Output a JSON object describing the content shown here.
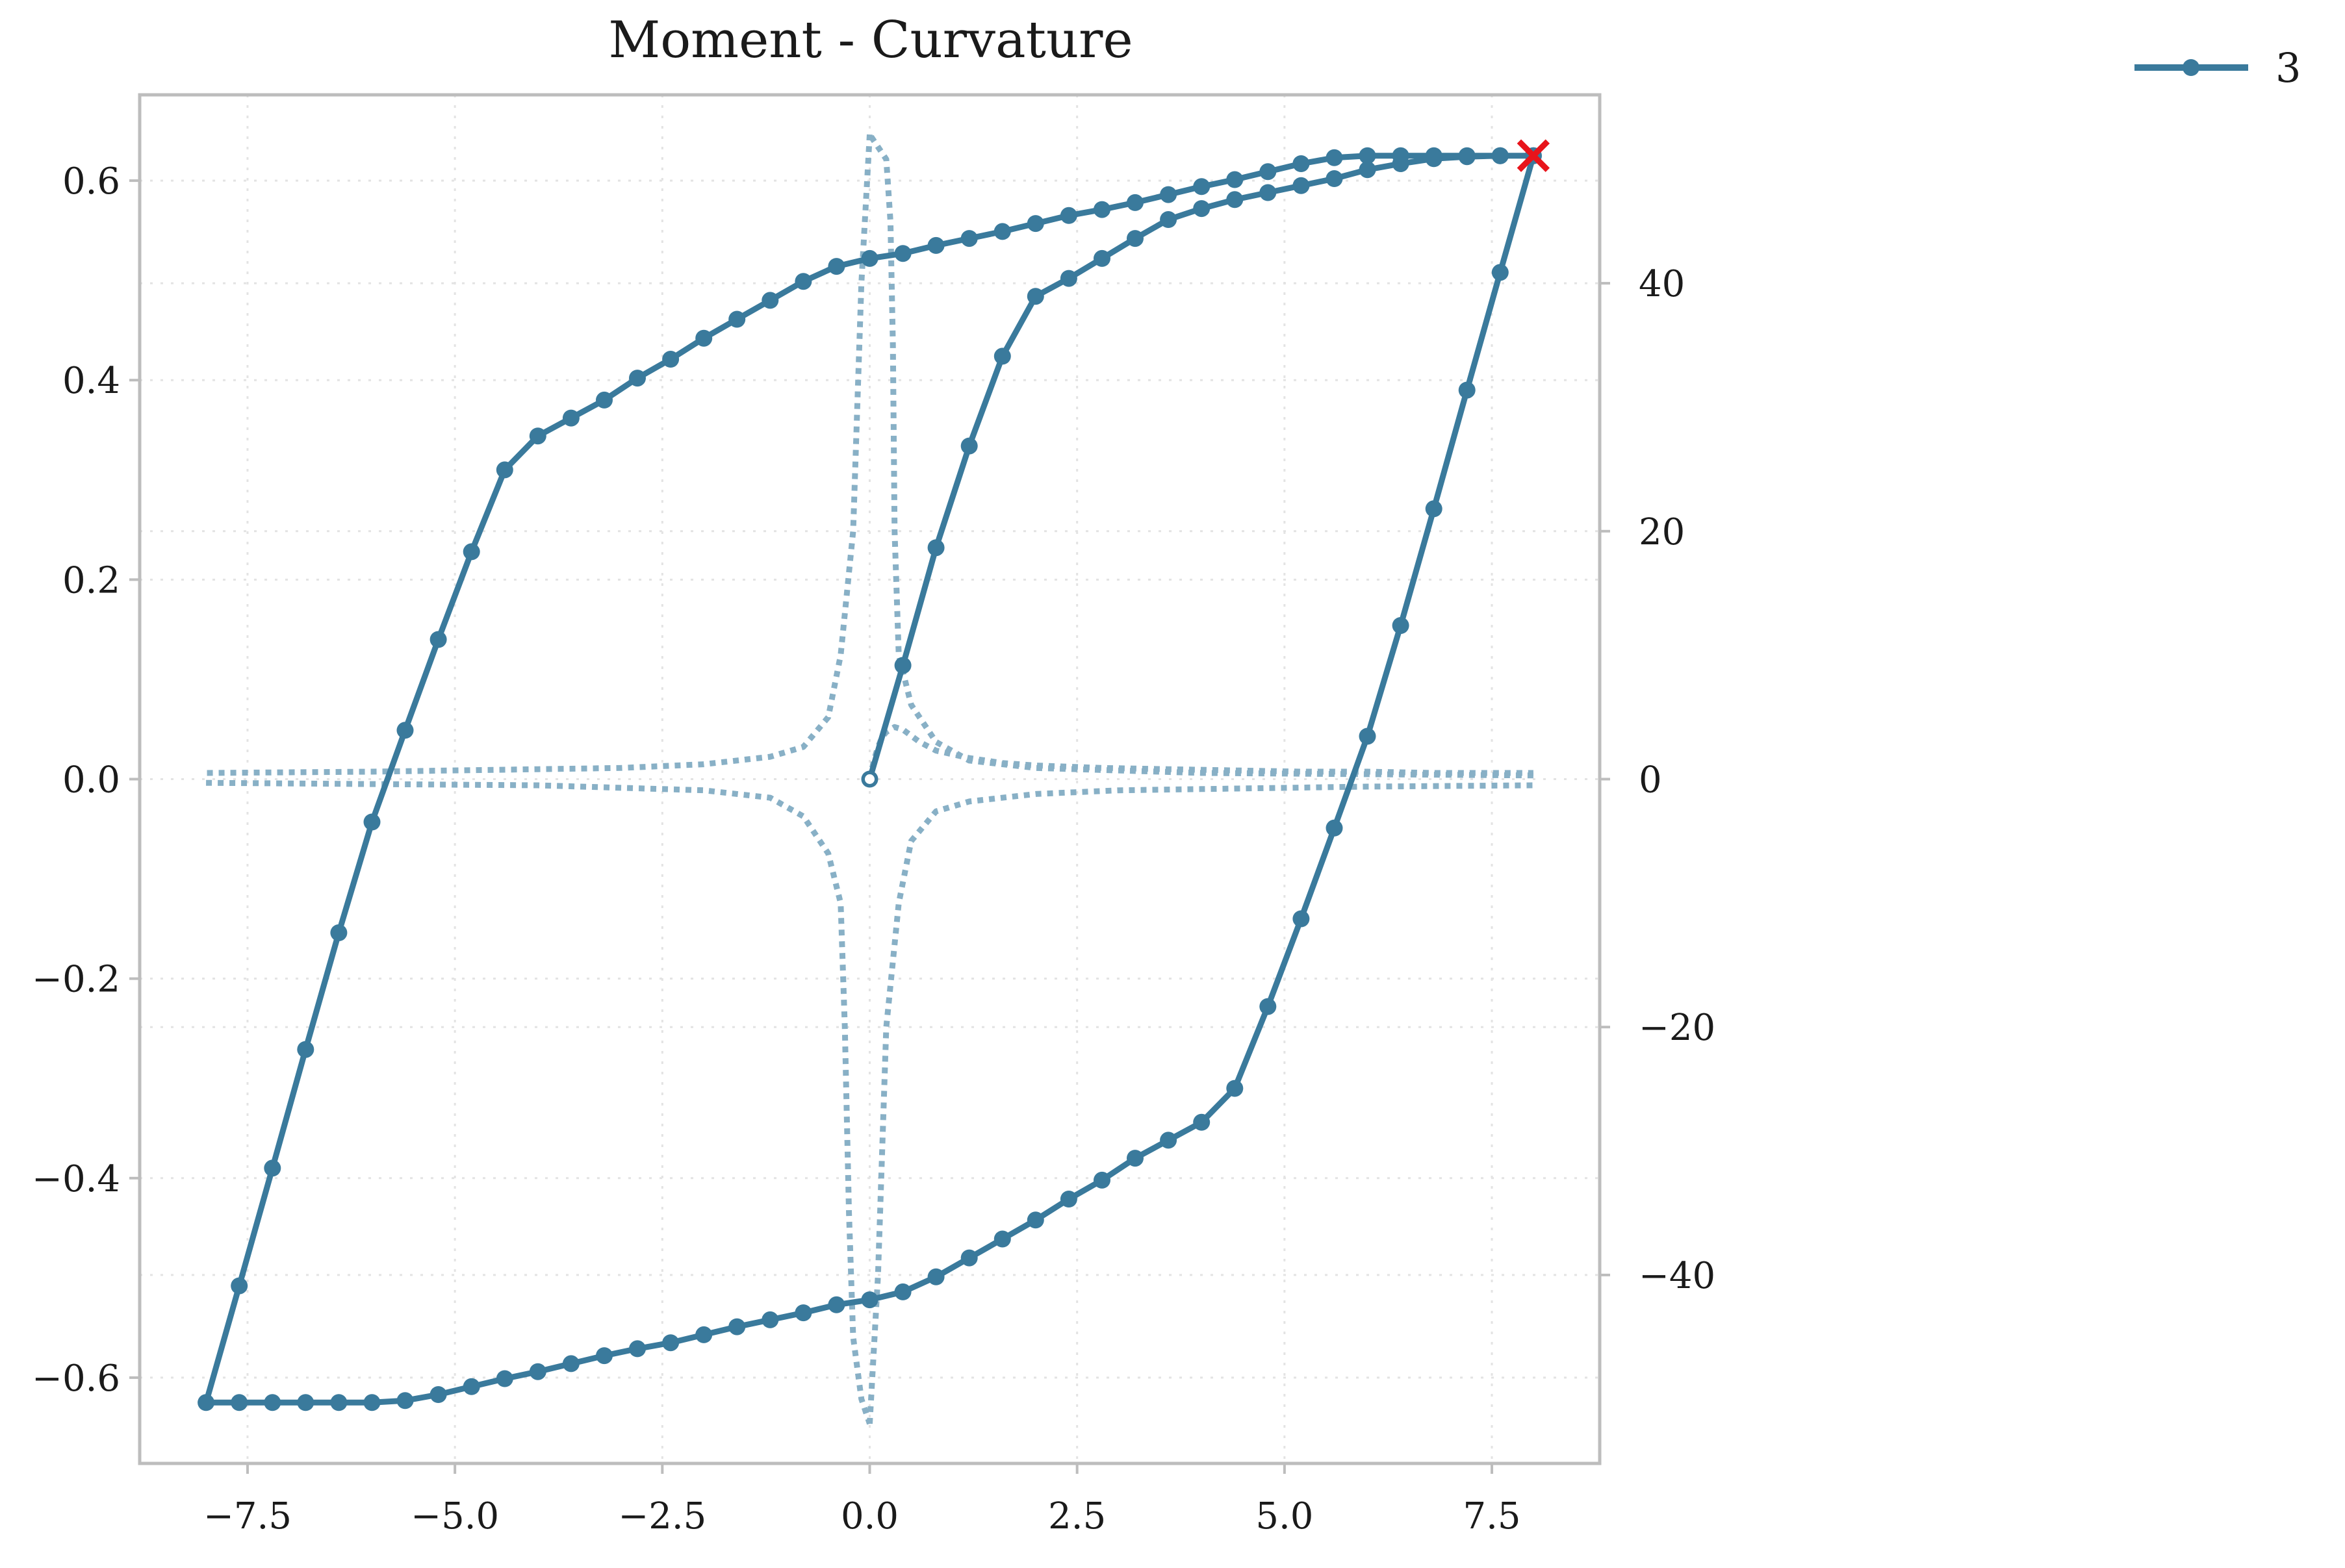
{
  "chart_data": {
    "type": "line",
    "title": "Moment - Curvature",
    "xlabel": "",
    "ylabel": "",
    "y2label": "",
    "xlim": [
      -8.8,
      8.8
    ],
    "ylim": [
      -0.686,
      0.686
    ],
    "y2lim": [
      -55.2,
      55.2
    ],
    "xticks": [
      -7.5,
      -5.0,
      -2.5,
      0.0,
      2.5,
      5.0,
      7.5
    ],
    "xtick_labels": [
      "−7.5",
      "−5.0",
      "−2.5",
      "0.0",
      "2.5",
      "5.0",
      "7.5"
    ],
    "yticks": [
      -0.6,
      -0.4,
      -0.2,
      0.0,
      0.2,
      0.4,
      0.6
    ],
    "ytick_labels": [
      "−0.6",
      "−0.4",
      "−0.2",
      "0.0",
      "0.2",
      "0.4",
      "0.6"
    ],
    "y2ticks": [
      -40,
      -20,
      0,
      20,
      40
    ],
    "y2tick_labels": [
      "−40",
      "−20",
      "0",
      "20",
      "40"
    ],
    "grid": true,
    "legend_position": "outside-top-right",
    "colors": {
      "series": "#3a7a9c",
      "secondary": "#88b0c6",
      "end_marker": "#e8141b",
      "axes": "#bdbdbd",
      "grid": "#e3e3e3"
    },
    "series": [
      {
        "name": "3",
        "axis": "left",
        "style": "solid-line-with-dots",
        "x": [
          0.0,
          0.4,
          0.8,
          1.2,
          1.6,
          2.0,
          2.4,
          2.8,
          3.2,
          3.6,
          4.0,
          4.4,
          4.8,
          5.2,
          5.6,
          6.0,
          6.4,
          6.8,
          7.2,
          7.6,
          8.0,
          7.6,
          7.2,
          6.8,
          6.4,
          6.0,
          5.6,
          5.2,
          4.8,
          4.4,
          4.0,
          3.6,
          3.2,
          2.8,
          2.4,
          2.0,
          1.6,
          1.2,
          0.8,
          0.4,
          0.0,
          -0.4,
          -0.8,
          -1.2,
          -1.6,
          -2.0,
          -2.4,
          -2.8,
          -3.2,
          -3.6,
          -4.0,
          -4.4,
          -4.8,
          -5.2,
          -5.6,
          -6.0,
          -6.4,
          -6.8,
          -7.2,
          -7.6,
          -8.0,
          -7.6,
          -7.2,
          -6.8,
          -6.4,
          -6.0,
          -5.6,
          -5.2,
          -4.8,
          -4.4,
          -4.0,
          -3.6,
          -3.2,
          -2.8,
          -2.4,
          -2.0,
          -1.6,
          -1.2,
          -0.8,
          -0.4,
          0.0,
          0.4,
          0.8,
          1.2,
          1.6,
          2.0,
          2.4,
          2.8,
          3.2,
          3.6,
          4.0,
          4.4,
          4.8,
          5.2,
          5.6,
          6.0,
          6.4,
          6.8,
          7.2,
          7.6,
          8.0
        ],
        "y": [
          0.0,
          0.114,
          0.232,
          0.334,
          0.424,
          0.484,
          0.502,
          0.522,
          0.542,
          0.561,
          0.572,
          0.581,
          0.588,
          0.595,
          0.602,
          0.611,
          0.617,
          0.622,
          0.624,
          0.625,
          0.625,
          0.508,
          0.39,
          0.271,
          0.154,
          0.043,
          -0.049,
          -0.14,
          -0.228,
          -0.31,
          -0.344,
          -0.362,
          -0.38,
          -0.402,
          -0.421,
          -0.442,
          -0.461,
          -0.48,
          -0.499,
          -0.514,
          -0.522,
          -0.527,
          -0.535,
          -0.542,
          -0.549,
          -0.557,
          -0.565,
          -0.571,
          -0.578,
          -0.586,
          -0.594,
          -0.601,
          -0.609,
          -0.617,
          -0.623,
          -0.625,
          -0.625,
          -0.625,
          -0.625,
          -0.625,
          -0.625,
          -0.508,
          -0.39,
          -0.271,
          -0.154,
          -0.043,
          0.049,
          0.14,
          0.228,
          0.31,
          0.344,
          0.362,
          0.38,
          0.402,
          0.421,
          0.442,
          0.461,
          0.48,
          0.499,
          0.514,
          0.522,
          0.527,
          0.535,
          0.542,
          0.549,
          0.557,
          0.565,
          0.571,
          0.578,
          0.586,
          0.594,
          0.601,
          0.609,
          0.617,
          0.623,
          0.625,
          0.625,
          0.625,
          0.625,
          0.625,
          0.625
        ]
      },
      {
        "name": "",
        "axis": "right",
        "style": "dotted",
        "segments": [
          {
            "x": [
              0.0,
              0.05,
              0.1,
              0.15,
              0.2,
              0.3,
              0.4,
              0.6,
              0.8,
              1.2,
              1.6,
              2.0,
              2.8,
              3.6,
              4.4,
              5.2,
              6.0,
              6.8,
              8.0
            ],
            "y": [
              0.0,
              1.5,
              2.6,
              3.4,
              3.8,
              4.2,
              4.0,
              3.0,
              2.3,
              1.7,
              1.3,
              1.1,
              0.9,
              0.8,
              0.7,
              0.6,
              0.6,
              0.5,
              0.5
            ]
          },
          {
            "x": [
              8.0,
              6.0,
              4.0,
              2.0,
              1.2,
              0.8,
              0.5,
              0.35,
              0.3,
              0.28,
              0.25,
              0.2,
              0.1,
              0.05,
              0.0
            ],
            "y": [
              0.3,
              0.4,
              0.5,
              0.9,
              1.5,
              3.0,
              6.0,
              10.0,
              20.0,
              35.0,
              45.0,
              50.0,
              51.0,
              51.5,
              52.0
            ]
          },
          {
            "x": [
              0.0,
              -0.1,
              -0.2,
              -0.35,
              -0.5,
              -0.8,
              -1.2,
              -2.0,
              -3.0,
              -4.0,
              -6.0,
              -8.0
            ],
            "y": [
              52.0,
              40.0,
              20.0,
              10.0,
              5.0,
              2.6,
              1.8,
              1.2,
              0.9,
              0.8,
              0.6,
              0.5
            ]
          },
          {
            "x": [
              -8.0,
              -6.0,
              -4.0,
              -2.0,
              -1.2,
              -0.8,
              -0.5,
              -0.35,
              -0.3,
              -0.25,
              -0.2,
              -0.1,
              0.0
            ],
            "y": [
              -0.3,
              -0.4,
              -0.5,
              -0.9,
              -1.5,
              -3.0,
              -6.0,
              -10.0,
              -20.0,
              -35.0,
              -45.0,
              -50.0,
              -52.0
            ]
          },
          {
            "x": [
              0.0,
              0.1,
              0.2,
              0.35,
              0.5,
              0.8,
              1.2,
              2.0,
              3.0,
              4.0,
              6.0,
              8.0
            ],
            "y": [
              -52.0,
              -40.0,
              -20.0,
              -10.0,
              -5.0,
              -2.6,
              -1.8,
              -1.2,
              -0.9,
              -0.8,
              -0.6,
              -0.5
            ]
          }
        ]
      }
    ],
    "annotations": [
      {
        "type": "x-marker",
        "x": 8.0,
        "y": 0.625
      }
    ]
  }
}
